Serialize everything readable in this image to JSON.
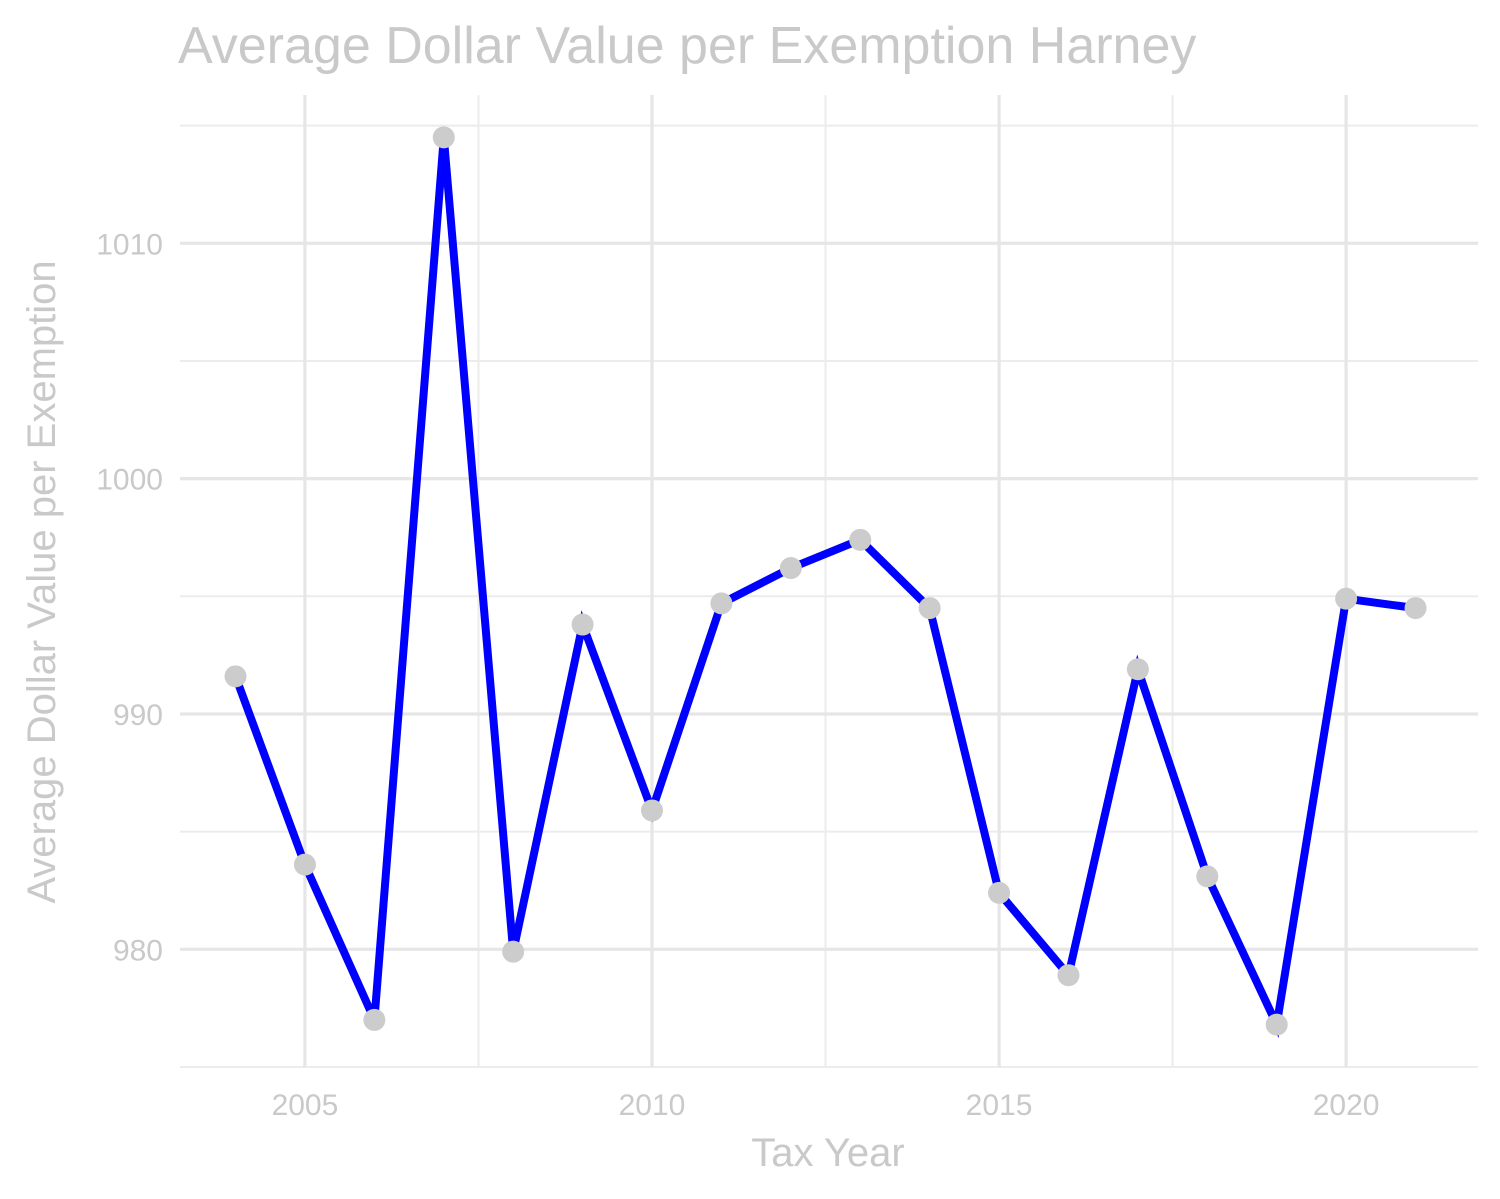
{
  "chart_data": {
    "type": "line",
    "title": "Average Dollar Value per Exemption Harney",
    "xlabel": "Tax Year",
    "ylabel": "Average Dollar Value per Exemption",
    "x_ticks": [
      "2005",
      "2010",
      "2015",
      "2020"
    ],
    "y_ticks": [
      "980",
      "990",
      "1000",
      "1010"
    ],
    "xlim": [
      2003.2,
      2021.9
    ],
    "ylim": [
      975.0,
      1016.3
    ],
    "grid": true,
    "line_color": "#0000ff",
    "point_color": "#cccccc",
    "series": [
      {
        "x": [
          2004,
          2005,
          2006,
          2007,
          2008,
          2009,
          2010,
          2011,
          2012,
          2013,
          2014,
          2015,
          2016,
          2017,
          2018,
          2019,
          2020,
          2021
        ],
        "values": [
          991.6,
          983.6,
          977.0,
          1014.5,
          979.9,
          993.8,
          985.9,
          994.7,
          996.2,
          997.4,
          994.5,
          982.4,
          978.9,
          991.9,
          983.1,
          976.8,
          994.9,
          994.5
        ]
      }
    ]
  }
}
